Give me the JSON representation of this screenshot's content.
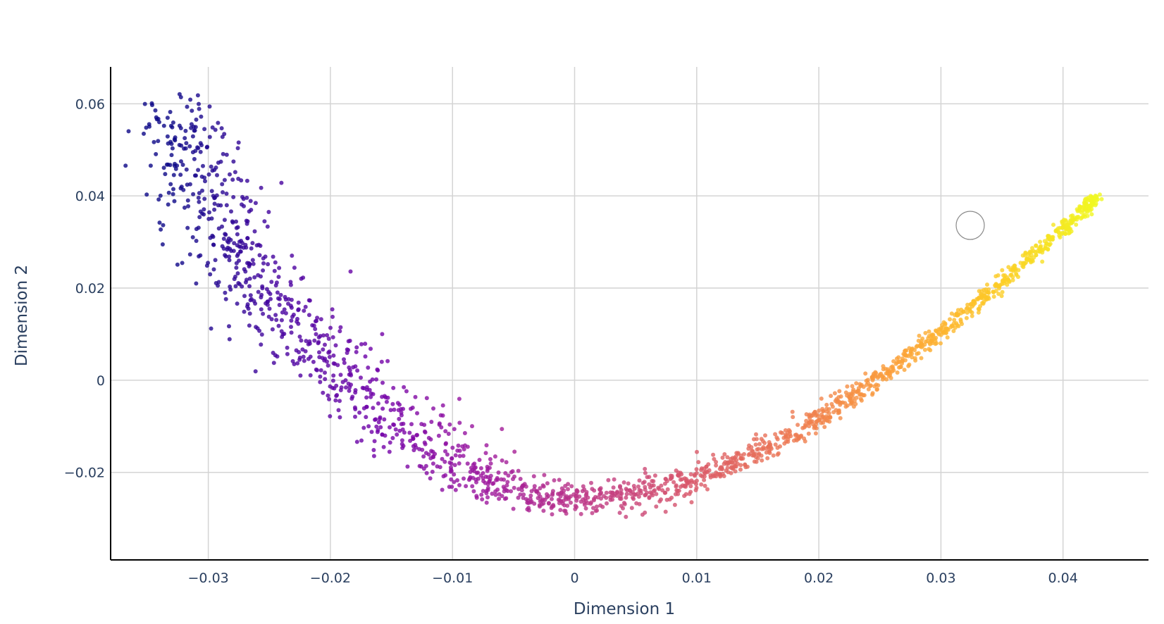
{
  "chart_data": {
    "type": "scatter",
    "title": "",
    "xlabel": "Dimension 1",
    "ylabel": "Dimension 2",
    "xlim": [
      -0.038,
      0.047
    ],
    "ylim": [
      -0.039,
      0.068
    ],
    "x_ticks": [
      -0.03,
      -0.02,
      -0.01,
      0,
      0.01,
      0.02,
      0.03,
      0.04
    ],
    "x_tick_labels": [
      "−0.03",
      "−0.02",
      "−0.01",
      "0",
      "0.01",
      "0.02",
      "0.03",
      "0.04"
    ],
    "y_ticks": [
      -0.02,
      0,
      0.02,
      0.04,
      0.06
    ],
    "y_tick_labels": [
      "−0.02",
      "0",
      "0.02",
      "0.04",
      "0.06"
    ],
    "grid": true,
    "legend": "none",
    "colorscale": "plasma",
    "colorscale_colors": [
      "#0d0887",
      "#46039f",
      "#7201a8",
      "#9c179e",
      "#bd3786",
      "#d8576b",
      "#ed7953",
      "#fb9f3a",
      "#fdca26",
      "#f0f921"
    ],
    "marker_color_by": "x",
    "marker_opacity": 0.8,
    "series": [
      {
        "x": [
          -0.0328,
          -0.0318,
          -0.0308,
          -0.0296,
          -0.0282,
          -0.0266,
          -0.0248,
          -0.0229,
          -0.0208,
          -0.0186,
          -0.0163,
          -0.0139,
          -0.0114,
          -0.0088,
          -0.0062,
          -0.0035,
          -0.0008,
          0.0018,
          0.0045,
          0.0071,
          0.0097,
          0.0122,
          0.0147,
          0.0172,
          0.0196,
          0.022,
          0.0244,
          0.0268,
          0.0291,
          0.0314,
          0.0336,
          0.0358,
          0.038,
          0.0401,
          0.0418,
          0.0428
        ],
        "y": [
          0.06,
          0.052,
          0.044,
          0.036,
          0.03,
          0.024,
          0.018,
          0.012,
          0.006,
          0.0,
          -0.006,
          -0.011,
          -0.016,
          -0.02,
          -0.023,
          -0.025,
          -0.026,
          -0.026,
          -0.025,
          -0.0235,
          -0.0215,
          -0.019,
          -0.016,
          -0.0125,
          -0.0085,
          -0.0045,
          -0.0005,
          0.004,
          0.0085,
          0.0135,
          0.0185,
          0.0235,
          0.0285,
          0.033,
          0.037,
          0.04
        ],
        "spread": [
          0.005,
          0.005,
          0.006,
          0.006,
          0.006,
          0.006,
          0.006,
          0.006,
          0.006,
          0.006,
          0.006,
          0.006,
          0.006,
          0.005,
          0.0045,
          0.004,
          0.004,
          0.004,
          0.0038,
          0.0035,
          0.003,
          0.0028,
          0.0025,
          0.0022,
          0.002,
          0.0018,
          0.0017,
          0.0015,
          0.0014,
          0.0013,
          0.0012,
          0.0012,
          0.0011,
          0.001,
          0.001,
          0.0008
        ],
        "marker_size": 6
      }
    ]
  }
}
